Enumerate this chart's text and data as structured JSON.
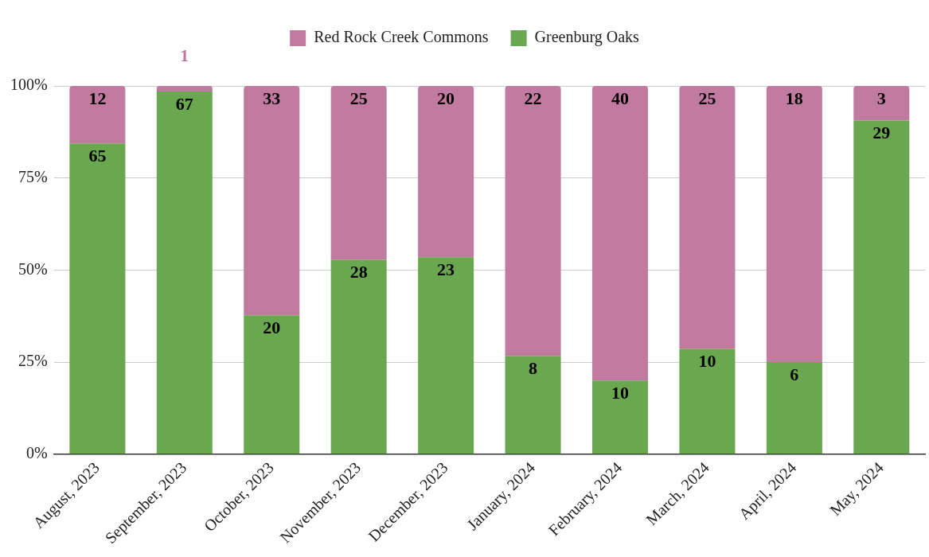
{
  "chart_data": {
    "type": "bar",
    "stacked": true,
    "categories": [
      "August, 2023",
      "September, 2023",
      "October, 2023",
      "November, 2023",
      "December, 2023",
      "January, 2024",
      "February, 2024",
      "March, 2024",
      "April, 2024",
      "May, 2024"
    ],
    "series": [
      {
        "name": "Greenburg Oaks",
        "color": "#6aa84f",
        "values": [
          84.4,
          98.5,
          37.7,
          52.8,
          53.5,
          26.7,
          20,
          28.6,
          25,
          90.6
        ]
      },
      {
        "name": "Red Rock Creek Commons",
        "color": "#c27ba0",
        "values": [
          15.6,
          1.5,
          62.3,
          47.2,
          46.5,
          73.3,
          80,
          71.4,
          75,
          9.4
        ]
      }
    ],
    "annotations": [
      {
        "text": "65",
        "x": "August, 2023",
        "y": 84.4
      },
      {
        "text": "67",
        "x": "September, 2023",
        "y": 98.5
      },
      {
        "text": "20",
        "x": "October, 2023",
        "y": 37.7
      },
      {
        "text": "28",
        "x": "November, 2023",
        "y": 52.8
      },
      {
        "text": "23",
        "x": "December, 2023",
        "y": 53.5
      },
      {
        "text": "8",
        "x": "January, 2024",
        "y": 26.7
      },
      {
        "text": "10",
        "x": "February, 2024",
        "y": 20
      },
      {
        "text": "10",
        "x": "March, 2024",
        "y": 28.6
      },
      {
        "text": "6",
        "x": "April, 2024",
        "y": 25
      },
      {
        "text": "29",
        "x": "May, 2024",
        "y": 90.6
      },
      {
        "text": "12",
        "x": "August, 2023",
        "y": 100
      },
      {
        "text": "1",
        "x": "September, 2023",
        "y": 100
      },
      {
        "text": "33",
        "x": "October, 2023",
        "y": 100
      },
      {
        "text": "25",
        "x": "November, 2023",
        "y": 100
      },
      {
        "text": "20",
        "x": "December, 2023",
        "y": 100
      },
      {
        "text": "22",
        "x": "January, 2024",
        "y": 100
      },
      {
        "text": "40",
        "x": "February, 2024",
        "y": 100
      },
      {
        "text": "25",
        "x": "March, 2024",
        "y": 100
      },
      {
        "text": "18",
        "x": "April, 2024",
        "y": 100
      },
      {
        "text": "3",
        "x": "May, 2024",
        "y": 100
      }
    ],
    "ylim": [
      0,
      100
    ],
    "yticks": [
      {
        "value": 0,
        "label": "0%"
      },
      {
        "value": 25,
        "label": "25%"
      },
      {
        "value": 50,
        "label": "50%"
      },
      {
        "value": 75,
        "label": "75%"
      },
      {
        "value": 100,
        "label": "100%"
      }
    ],
    "grid": "y",
    "legend": "top"
  }
}
